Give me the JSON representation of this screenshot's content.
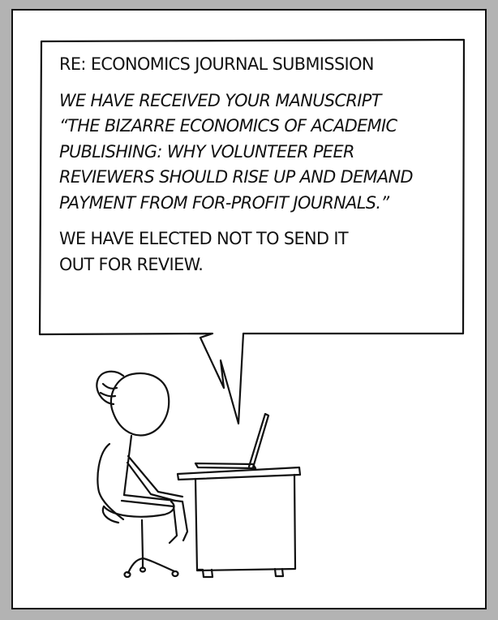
{
  "comic": {
    "subject_line": "RE: ECONOMICS JOURNAL SUBMISSION",
    "body_lines": [
      "WE HAVE RECEIVED YOUR MANUSCRIPT",
      "“THE BIZARRE ECONOMICS OF ACADEMIC",
      "PUBLISHING: WHY VOLUNTEER PEER",
      "REVIEWERS SHOULD RISE UP AND DEMAND",
      "PAYMENT FROM FOR-PROFIT JOURNALS.”"
    ],
    "decision_lines": [
      "WE HAVE ELECTED NOT TO SEND IT",
      "OUT FOR REVIEW."
    ]
  },
  "colors": {
    "background": "#b3b3b3",
    "panel": "#ffffff",
    "ink": "#111111"
  }
}
